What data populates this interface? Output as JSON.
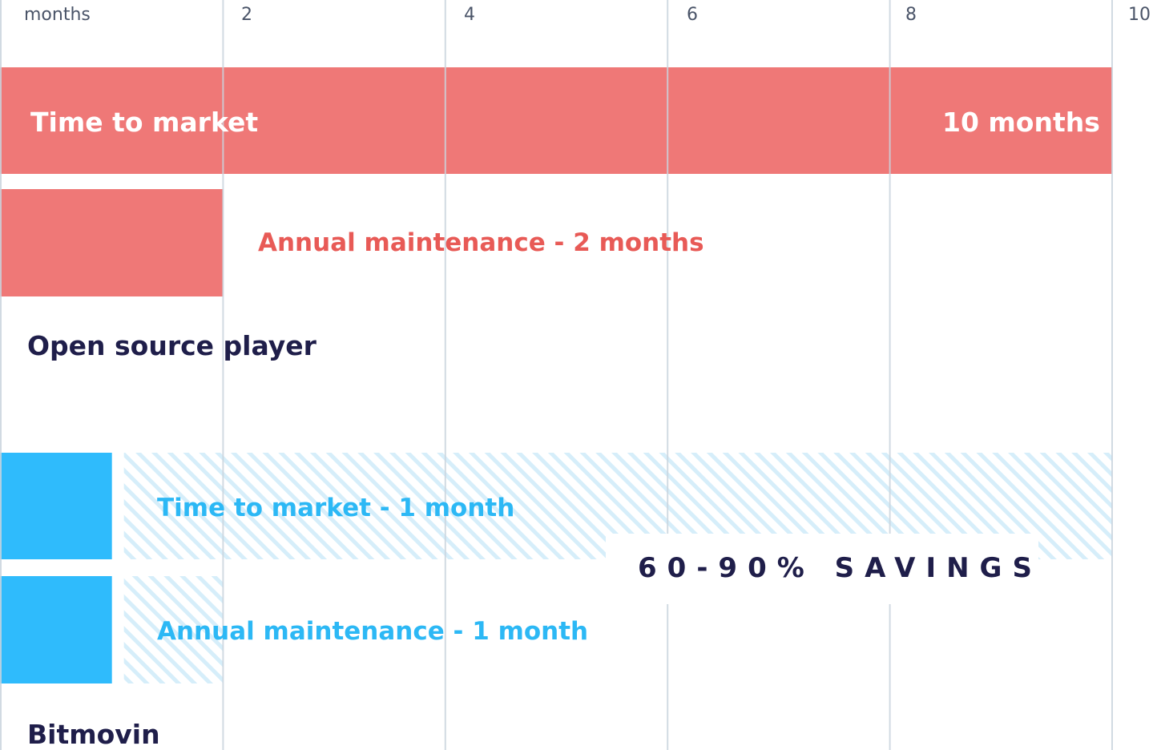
{
  "chart_data": {
    "type": "bar",
    "orientation": "horizontal",
    "xlabel": "months",
    "xlim": [
      0,
      10
    ],
    "x_ticks": [
      "2",
      "4",
      "6",
      "8",
      "10"
    ],
    "colors": {
      "open_source": "#ef7877",
      "bitmovin": "#2fbbfc",
      "savings_hatch": "#d6eefa",
      "text_dark": "#1f1e4a",
      "text_red": "#e85a56",
      "text_blue": "#2cb8f5",
      "grid": "#c9d3dd"
    },
    "groups": [
      {
        "name": "Open source player",
        "bars": [
          {
            "label": "Time to market",
            "value_label": "10 months",
            "value": 10
          },
          {
            "label": "Annual maintenance - 2 months",
            "value": 2
          }
        ]
      },
      {
        "name": "Bitmovin",
        "bars": [
          {
            "label": "Time to market - 1 month",
            "value": 1,
            "savings_to": 10
          },
          {
            "label": "Annual maintenance - 1 month",
            "value": 1,
            "savings_to": 2
          }
        ]
      }
    ],
    "annotation": "60-90% SAVINGS"
  }
}
